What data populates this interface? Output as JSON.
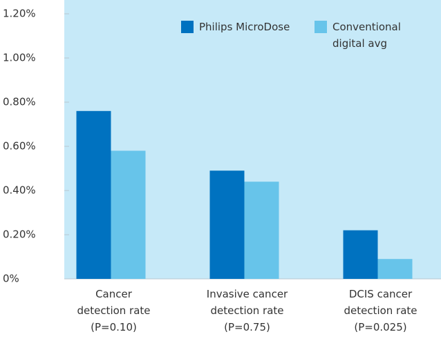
{
  "chart_data": {
    "type": "bar",
    "categories": [
      "Cancer\ndetection rate\n(P=0.10)",
      "Invasive cancer\ndetection rate\n(P=0.75)",
      "DCIS cancer\ndetection rate\n(P=0.025)"
    ],
    "series": [
      {
        "name": "Philips MicroDose",
        "color": "#0072c0",
        "values": [
          0.76,
          0.49,
          0.22
        ]
      },
      {
        "name": "Conventional\ndigital avg",
        "color": "#67c4ea",
        "values": [
          0.58,
          0.44,
          0.09
        ]
      }
    ],
    "ylim": [
      0,
      1.2
    ],
    "yticks": [
      {
        "value": 0,
        "label": "0%"
      },
      {
        "value": 0.2,
        "label": "0.20%"
      },
      {
        "value": 0.4,
        "label": "0.40%"
      },
      {
        "value": 0.6,
        "label": "0.60%"
      },
      {
        "value": 0.8,
        "label": "0.80%"
      },
      {
        "value": 1.0,
        "label": "1.00%"
      },
      {
        "value": 1.2,
        "label": "1.20%"
      }
    ],
    "legend": "top-right"
  }
}
